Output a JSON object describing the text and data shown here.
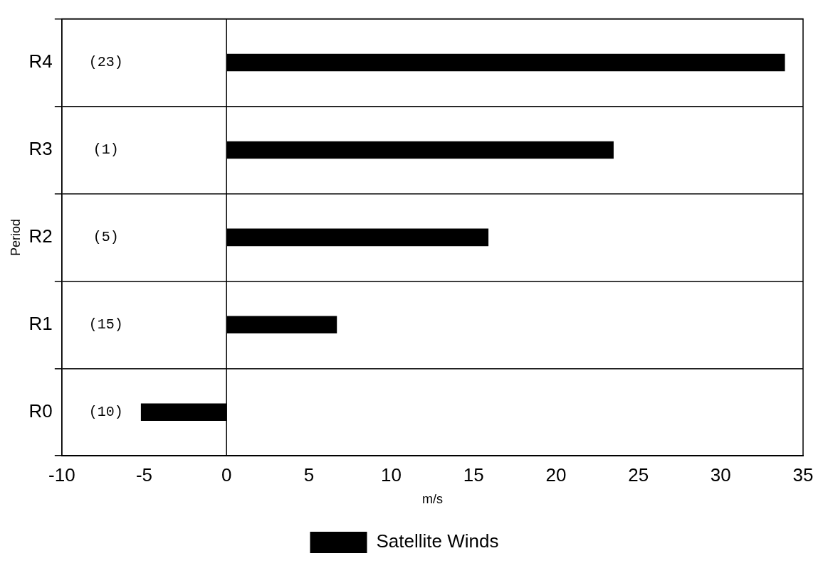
{
  "chart_data": {
    "type": "bar",
    "orientation": "horizontal",
    "xlabel": "m/s",
    "ylabel": "Period",
    "categories": [
      "R4",
      "R3",
      "R2",
      "R1",
      "R0"
    ],
    "series": [
      {
        "name": "Satellite Winds",
        "color": "#000000",
        "values": [
          33.9,
          23.5,
          15.9,
          6.7,
          -5.2
        ]
      }
    ],
    "xlim": [
      -10,
      35
    ],
    "xticks": [
      -10,
      -5,
      0,
      5,
      10,
      15,
      20,
      25,
      30,
      35
    ],
    "grid": "y",
    "legend": "bottom",
    "ref_lines": [
      {
        "axis": "x",
        "value": 0
      }
    ],
    "annotations": [
      "(23)",
      "(1)",
      "(5)",
      "(15)",
      "(10)"
    ]
  }
}
